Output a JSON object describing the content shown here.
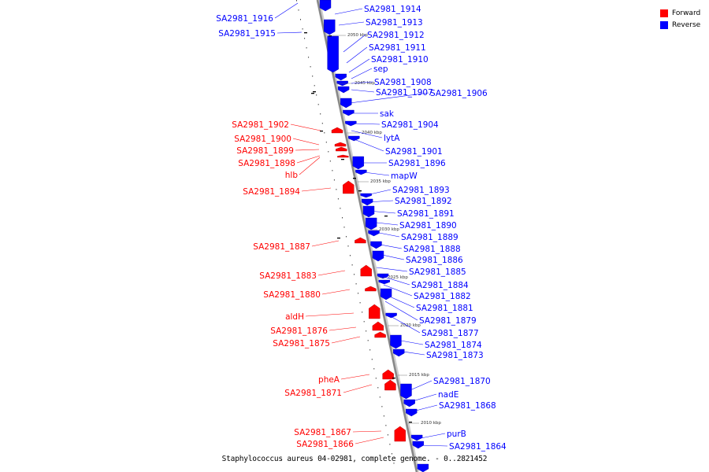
{
  "caption": "Staphylococcus aureus 04-02981, complete genome. - 0..2821452",
  "colors": {
    "forward": "#ff0000",
    "reverse": "#0000ff",
    "backbone": "#888888"
  },
  "legend": [
    {
      "label": "Forward",
      "color": "#ff0000"
    },
    {
      "label": "Reverse",
      "color": "#0000ff"
    }
  ],
  "ticks": [
    "2050 kbp",
    "2045 kbp",
    "2040 kbp",
    "2035 kbp",
    "2030 kbp",
    "2025 kbp",
    "2020 kbp",
    "2015 kbp",
    "2010 kbp"
  ],
  "features": {
    "reverse": [
      "SA2981_1916",
      "SA2981_1915",
      "SA2981_1914",
      "SA2981_1913",
      "SA2981_1912",
      "SA2981_1911",
      "SA2981_1910",
      "sep",
      "SA2981_1908",
      "SA2981_1907",
      "SA2981_1906",
      "sak",
      "SA2981_1904",
      "lytA",
      "SA2981_1901",
      "SA2981_1896",
      "mapW",
      "SA2981_1893",
      "SA2981_1892",
      "SA2981_1891",
      "SA2981_1890",
      "SA2981_1889",
      "SA2981_1888",
      "SA2981_1886",
      "SA2981_1885",
      "SA2981_1884",
      "SA2981_1882",
      "SA2981_1881",
      "SA2981_1879",
      "SA2981_1877",
      "SA2981_1874",
      "SA2981_1873",
      "SA2981_1870",
      "nadE",
      "SA2981_1868",
      "purB",
      "SA2981_1864"
    ],
    "forward": [
      "SA2981_1902",
      "SA2981_1900",
      "SA2981_1899",
      "SA2981_1898",
      "hlb",
      "SA2981_1894",
      "SA2981_1887",
      "SA2981_1883",
      "SA2981_1880",
      "aldH",
      "SA2981_1876",
      "SA2981_1875",
      "pheA",
      "SA2981_1871",
      "SA2981_1867",
      "SA2981_1866"
    ]
  }
}
